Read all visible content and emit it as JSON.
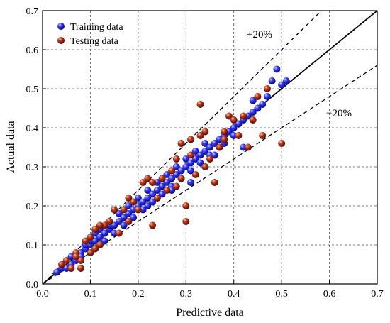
{
  "chart_data": {
    "type": "scatter",
    "xlabel": "Predictive data",
    "ylabel": "Actual data",
    "xlim": [
      0.0,
      0.7
    ],
    "ylim": [
      0.0,
      0.7
    ],
    "xticks": [
      "0.0",
      "0.1",
      "0.2",
      "0.3",
      "0.4",
      "0.5",
      "0.6",
      "0.7"
    ],
    "yticks": [
      "0.0",
      "0.1",
      "0.2",
      "0.3",
      "0.4",
      "0.5",
      "0.6",
      "0.7"
    ],
    "grid": true,
    "legend_position": "top-left",
    "reference_lines": [
      {
        "label": "",
        "slope": 1.0,
        "style": "solid"
      },
      {
        "label": "+20%",
        "slope": 1.2,
        "style": "dashed"
      },
      {
        "label": "−20%",
        "slope": 0.8,
        "style": "dashed"
      }
    ],
    "series": [
      {
        "name": "Training data",
        "color": "#1a1adb",
        "points": [
          [
            0.03,
            0.03
          ],
          [
            0.04,
            0.04
          ],
          [
            0.05,
            0.04
          ],
          [
            0.06,
            0.05
          ],
          [
            0.06,
            0.07
          ],
          [
            0.07,
            0.06
          ],
          [
            0.08,
            0.08
          ],
          [
            0.08,
            0.07
          ],
          [
            0.09,
            0.09
          ],
          [
            0.09,
            0.1
          ],
          [
            0.1,
            0.1
          ],
          [
            0.1,
            0.11
          ],
          [
            0.11,
            0.11
          ],
          [
            0.11,
            0.13
          ],
          [
            0.12,
            0.12
          ],
          [
            0.12,
            0.14
          ],
          [
            0.13,
            0.13
          ],
          [
            0.13,
            0.11
          ],
          [
            0.14,
            0.14
          ],
          [
            0.14,
            0.15
          ],
          [
            0.15,
            0.15
          ],
          [
            0.15,
            0.13
          ],
          [
            0.16,
            0.16
          ],
          [
            0.16,
            0.18
          ],
          [
            0.17,
            0.17
          ],
          [
            0.17,
            0.15
          ],
          [
            0.18,
            0.18
          ],
          [
            0.18,
            0.2
          ],
          [
            0.19,
            0.19
          ],
          [
            0.19,
            0.17
          ],
          [
            0.2,
            0.2
          ],
          [
            0.2,
            0.22
          ],
          [
            0.21,
            0.21
          ],
          [
            0.21,
            0.19
          ],
          [
            0.22,
            0.22
          ],
          [
            0.22,
            0.24
          ],
          [
            0.23,
            0.23
          ],
          [
            0.23,
            0.21
          ],
          [
            0.24,
            0.24
          ],
          [
            0.24,
            0.26
          ],
          [
            0.25,
            0.25
          ],
          [
            0.25,
            0.23
          ],
          [
            0.26,
            0.26
          ],
          [
            0.26,
            0.28
          ],
          [
            0.27,
            0.27
          ],
          [
            0.27,
            0.25
          ],
          [
            0.28,
            0.28
          ],
          [
            0.28,
            0.3
          ],
          [
            0.29,
            0.29
          ],
          [
            0.29,
            0.27
          ],
          [
            0.3,
            0.3
          ],
          [
            0.3,
            0.32
          ],
          [
            0.31,
            0.31
          ],
          [
            0.31,
            0.29
          ],
          [
            0.32,
            0.32
          ],
          [
            0.32,
            0.34
          ],
          [
            0.33,
            0.33
          ],
          [
            0.33,
            0.31
          ],
          [
            0.34,
            0.34
          ],
          [
            0.34,
            0.36
          ],
          [
            0.35,
            0.35
          ],
          [
            0.35,
            0.33
          ],
          [
            0.36,
            0.36
          ],
          [
            0.37,
            0.37
          ],
          [
            0.37,
            0.35
          ],
          [
            0.38,
            0.38
          ],
          [
            0.38,
            0.36
          ],
          [
            0.39,
            0.39
          ],
          [
            0.4,
            0.4
          ],
          [
            0.4,
            0.38
          ],
          [
            0.41,
            0.41
          ],
          [
            0.42,
            0.42
          ],
          [
            0.42,
            0.35
          ],
          [
            0.43,
            0.43
          ],
          [
            0.44,
            0.44
          ],
          [
            0.44,
            0.47
          ],
          [
            0.45,
            0.45
          ],
          [
            0.46,
            0.46
          ],
          [
            0.47,
            0.48
          ],
          [
            0.48,
            0.52
          ],
          [
            0.49,
            0.55
          ],
          [
            0.5,
            0.51
          ],
          [
            0.51,
            0.52
          ],
          [
            0.31,
            0.26
          ],
          [
            0.24,
            0.22
          ],
          [
            0.27,
            0.24
          ],
          [
            0.36,
            0.33
          ],
          [
            0.22,
            0.2
          ]
        ]
      },
      {
        "name": "Testing data",
        "color": "#a01e14",
        "points": [
          [
            0.04,
            0.05
          ],
          [
            0.05,
            0.06
          ],
          [
            0.06,
            0.04
          ],
          [
            0.07,
            0.08
          ],
          [
            0.08,
            0.06
          ],
          [
            0.08,
            0.04
          ],
          [
            0.09,
            0.11
          ],
          [
            0.1,
            0.08
          ],
          [
            0.11,
            0.14
          ],
          [
            0.11,
            0.09
          ],
          [
            0.12,
            0.1
          ],
          [
            0.13,
            0.15
          ],
          [
            0.14,
            0.16
          ],
          [
            0.15,
            0.19
          ],
          [
            0.16,
            0.13
          ],
          [
            0.17,
            0.19
          ],
          [
            0.18,
            0.16
          ],
          [
            0.19,
            0.21
          ],
          [
            0.2,
            0.19
          ],
          [
            0.21,
            0.26
          ],
          [
            0.22,
            0.27
          ],
          [
            0.23,
            0.15
          ],
          [
            0.24,
            0.22
          ],
          [
            0.25,
            0.27
          ],
          [
            0.26,
            0.24
          ],
          [
            0.27,
            0.29
          ],
          [
            0.28,
            0.25
          ],
          [
            0.29,
            0.27
          ],
          [
            0.3,
            0.2
          ],
          [
            0.3,
            0.16
          ],
          [
            0.31,
            0.37
          ],
          [
            0.32,
            0.28
          ],
          [
            0.33,
            0.46
          ],
          [
            0.33,
            0.38
          ],
          [
            0.34,
            0.3
          ],
          [
            0.35,
            0.32
          ],
          [
            0.36,
            0.26
          ],
          [
            0.37,
            0.35
          ],
          [
            0.38,
            0.39
          ],
          [
            0.39,
            0.43
          ],
          [
            0.4,
            0.42
          ],
          [
            0.41,
            0.38
          ],
          [
            0.42,
            0.43
          ],
          [
            0.43,
            0.35
          ],
          [
            0.44,
            0.42
          ],
          [
            0.46,
            0.38
          ],
          [
            0.47,
            0.5
          ],
          [
            0.5,
            0.36
          ],
          [
            0.28,
            0.32
          ],
          [
            0.29,
            0.36
          ],
          [
            0.23,
            0.26
          ],
          [
            0.18,
            0.22
          ],
          [
            0.12,
            0.15
          ],
          [
            0.1,
            0.12
          ],
          [
            0.07,
            0.07
          ],
          [
            0.31,
            0.33
          ],
          [
            0.34,
            0.39
          ],
          [
            0.45,
            0.48
          ],
          [
            0.38,
            0.37
          ]
        ]
      }
    ]
  }
}
